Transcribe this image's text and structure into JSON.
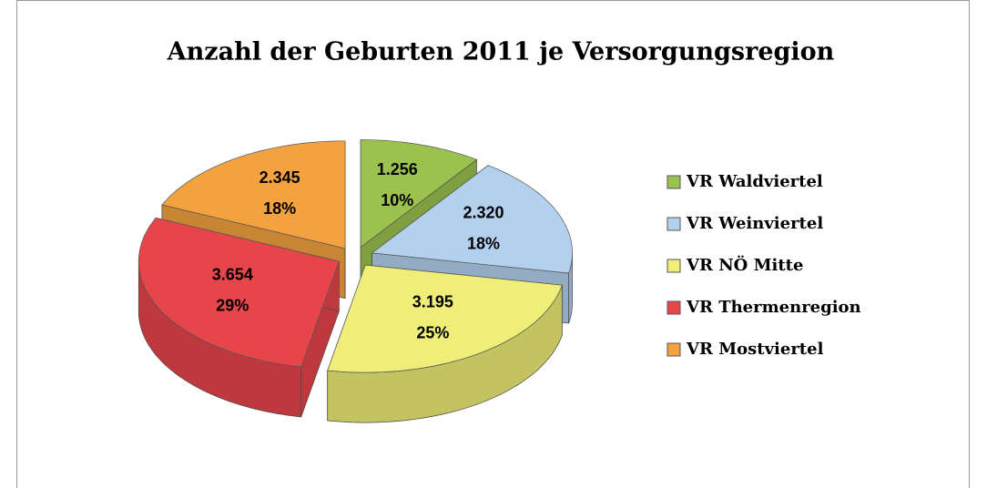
{
  "chart_data": {
    "type": "pie3d",
    "title": "Anzahl der Geburten 2011 je Versorgungsregion",
    "categories": [
      "VR Waldviertel",
      "VR Weinviertel",
      "VR NÖ Mitte",
      "VR Thermenregion",
      "VR Mostviertel"
    ],
    "values": [
      1256,
      2320,
      3195,
      3654,
      2345
    ],
    "value_labels": [
      "1.256",
      "2.320",
      "3.195",
      "3.654",
      "2.345"
    ],
    "percentages": [
      {
        "value": 10,
        "label": "10%"
      },
      {
        "value": 18,
        "label": "18%"
      },
      {
        "value": 25,
        "label": "25%"
      },
      {
        "value": 29,
        "label": "29%"
      },
      {
        "value": 18,
        "label": "18%"
      }
    ],
    "colors": [
      "#9bc24f",
      "#b3d0ee",
      "#eeee78",
      "#e8454a",
      "#f4a240"
    ],
    "legend": "right"
  }
}
